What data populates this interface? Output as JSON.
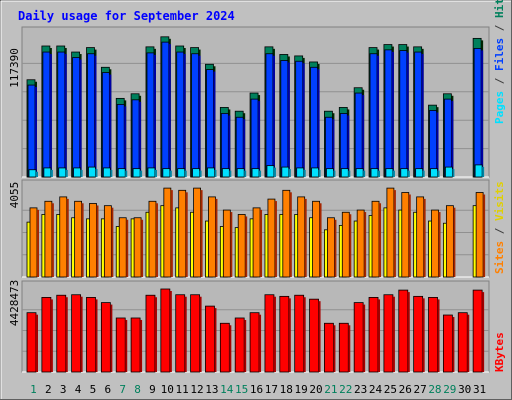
{
  "title": "Daily usage for September 2024",
  "colors": {
    "background": "#c0c0c0",
    "plot_bg": "#b8b8b8",
    "title": "#0000ff",
    "grid": "#909090",
    "hits": "#00805c",
    "files": "#0040ff",
    "pages": "#00e0ff",
    "visits": "#ffff00",
    "sites": "#ff8000",
    "kbytes": "#ff0000",
    "day_weekday": "#000000",
    "day_weekend": "#00805c"
  },
  "chart_data": [
    {
      "type": "bar",
      "name": "hits-files-pages",
      "ymax_label": "117390",
      "ymax": 117390,
      "legend": [
        "Pages",
        "Files",
        "Hits"
      ],
      "categories": [
        "1",
        "2",
        "3",
        "4",
        "5",
        "6",
        "7",
        "8",
        "9",
        "10",
        "11",
        "12",
        "13",
        "14",
        "15",
        "16",
        "17",
        "18",
        "19",
        "20",
        "21",
        "22",
        "23",
        "24",
        "25",
        "26",
        "27",
        "28",
        "29",
        "30",
        "31"
      ],
      "weekend": [
        1,
        7,
        8,
        14,
        15,
        21,
        22,
        28,
        29
      ],
      "series": [
        {
          "name": "Hits",
          "values": [
            80400,
            108300,
            108300,
            103300,
            107000,
            90700,
            65000,
            68800,
            107600,
            115900,
            108300,
            107000,
            93200,
            57500,
            54400,
            69400,
            107600,
            101300,
            100100,
            95100,
            54400,
            57500,
            73800,
            107000,
            109500,
            109500,
            107600,
            59400,
            68800,
            0,
            114600
          ]
        },
        {
          "name": "Files",
          "values": [
            76000,
            103300,
            103300,
            98800,
            101900,
            86300,
            60000,
            63800,
            102600,
            111500,
            103300,
            101900,
            88800,
            52500,
            49400,
            64400,
            101900,
            96300,
            95700,
            90700,
            49400,
            52500,
            69400,
            101900,
            105100,
            104500,
            103300,
            55000,
            64400,
            0,
            106300
          ]
        },
        {
          "name": "Pages",
          "values": [
            6000,
            7500,
            7500,
            7500,
            8200,
            7500,
            6900,
            6900,
            7500,
            6900,
            6900,
            6900,
            7500,
            6900,
            6900,
            6900,
            9400,
            8200,
            7500,
            7500,
            6900,
            6900,
            6900,
            6900,
            6900,
            6900,
            6900,
            6900,
            8200,
            0,
            10000
          ]
        }
      ]
    },
    {
      "type": "bar",
      "name": "visits-sites",
      "ymax_label": "4055",
      "ymax": 4055,
      "legend": [
        "Sites",
        "Visits"
      ],
      "series": [
        {
          "name": "Visits",
          "values": [
            2500,
            2850,
            2850,
            2700,
            2650,
            2650,
            2300,
            2650,
            2950,
            3250,
            3150,
            2950,
            2550,
            2300,
            2250,
            2650,
            2850,
            2850,
            2850,
            2700,
            2150,
            2350,
            2550,
            2800,
            3150,
            3050,
            2950,
            2550,
            2450,
            0,
            3250
          ]
        },
        {
          "name": "Sites",
          "values": [
            3150,
            3450,
            3650,
            3450,
            3350,
            3250,
            2700,
            2700,
            3450,
            4050,
            3950,
            4050,
            3650,
            3050,
            2850,
            3150,
            3550,
            3950,
            3650,
            3450,
            2700,
            2950,
            3050,
            3450,
            4050,
            3850,
            3650,
            3050,
            3250,
            0,
            3850
          ]
        }
      ]
    },
    {
      "type": "bar",
      "name": "kbytes",
      "ymax_label": "4428473",
      "ymax": 4428473,
      "legend": [
        "KBytes"
      ],
      "series": [
        {
          "name": "KBytes",
          "values": [
            3165000,
            3980000,
            4096000,
            4123000,
            3980000,
            3704000,
            2882000,
            2882000,
            4096000,
            4428473,
            4123000,
            4123000,
            3516000,
            2600000,
            2882000,
            3165000,
            4123000,
            4036000,
            4096000,
            3886000,
            2600000,
            2600000,
            3704000,
            3980000,
            4123000,
            4370000,
            4036000,
            3980000,
            3040000,
            3165000,
            4370000
          ]
        }
      ]
    }
  ]
}
